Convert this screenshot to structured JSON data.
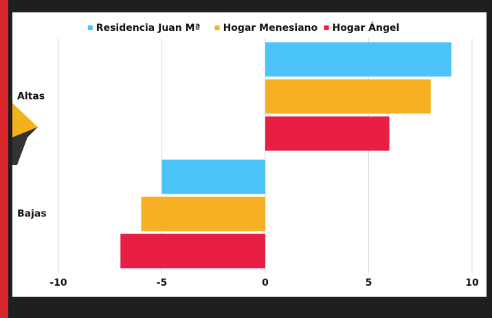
{
  "chart_data": {
    "type": "bar",
    "orientation": "horizontal",
    "categories": [
      "Altas",
      "Bajas"
    ],
    "series": [
      {
        "name": "Residencia Juan Mª",
        "color": "#4cc4f9",
        "values": [
          9,
          -5
        ]
      },
      {
        "name": "Hogar Menesiano",
        "color": "#f7b023",
        "values": [
          8,
          -6
        ]
      },
      {
        "name": "Hogar Ángel",
        "color": "#e81e45",
        "values": [
          6,
          -7
        ]
      }
    ],
    "xlim": [
      -10,
      10
    ],
    "xticks": [
      -10,
      -5,
      0,
      5,
      10
    ],
    "grid": true,
    "legend": "top"
  }
}
